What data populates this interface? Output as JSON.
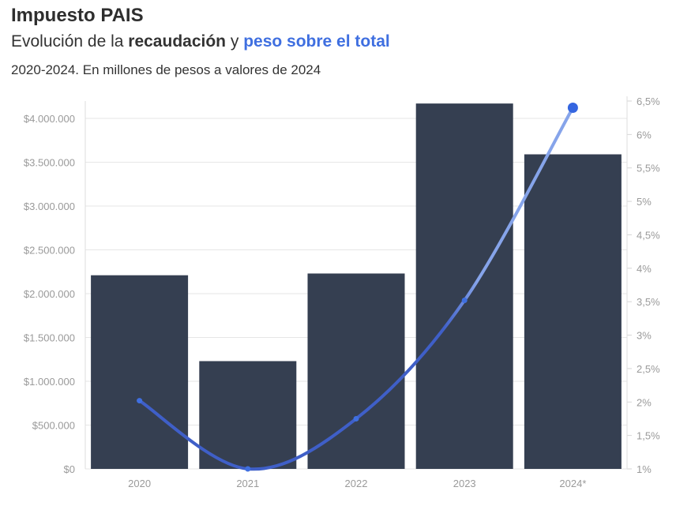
{
  "header": {
    "title": "Impuesto PAIS",
    "subtitle_prefix": "Evolución de la",
    "subtitle_bold": "recaudación",
    "subtitle_mid": "y",
    "subtitle_accent": "peso sobre el total",
    "note": "2020-2024. En millones de pesos a valores de 2024"
  },
  "chart_data": {
    "type": "bar",
    "categories": [
      "2020",
      "2021",
      "2022",
      "2023",
      "2024*"
    ],
    "series": [
      {
        "kind": "bar",
        "values": [
          2210000,
          1230000,
          2230000,
          4170000,
          3590000
        ],
        "color": "#353f51"
      },
      {
        "kind": "line",
        "values": [
          2.02,
          1.0,
          1.75,
          3.52,
          6.4
        ],
        "color": "#3f5fc8"
      }
    ],
    "y_left": {
      "ylim": [
        0,
        4200000
      ],
      "ticks": [
        0,
        500000,
        1000000,
        1500000,
        2000000,
        2500000,
        3000000,
        3500000,
        4000000
      ],
      "tick_labels": [
        "$0",
        "$500.000",
        "$1.000.000",
        "$1.500.000",
        "$2.000.000",
        "$2.500.000",
        "$3.000.000",
        "$3.500.000",
        "$4.000.000"
      ]
    },
    "y_right": {
      "ylim": [
        1,
        6.5
      ],
      "ticks": [
        1,
        1.5,
        2,
        2.5,
        3,
        3.5,
        4,
        4.5,
        5,
        5.5,
        6,
        6.5
      ],
      "tick_labels": [
        "1%",
        "1,5%",
        "2%",
        "2,5%",
        "3%",
        "3,5%",
        "4%",
        "4,5%",
        "5%",
        "5,5%",
        "6%",
        "6,5%"
      ]
    },
    "grid": true
  }
}
